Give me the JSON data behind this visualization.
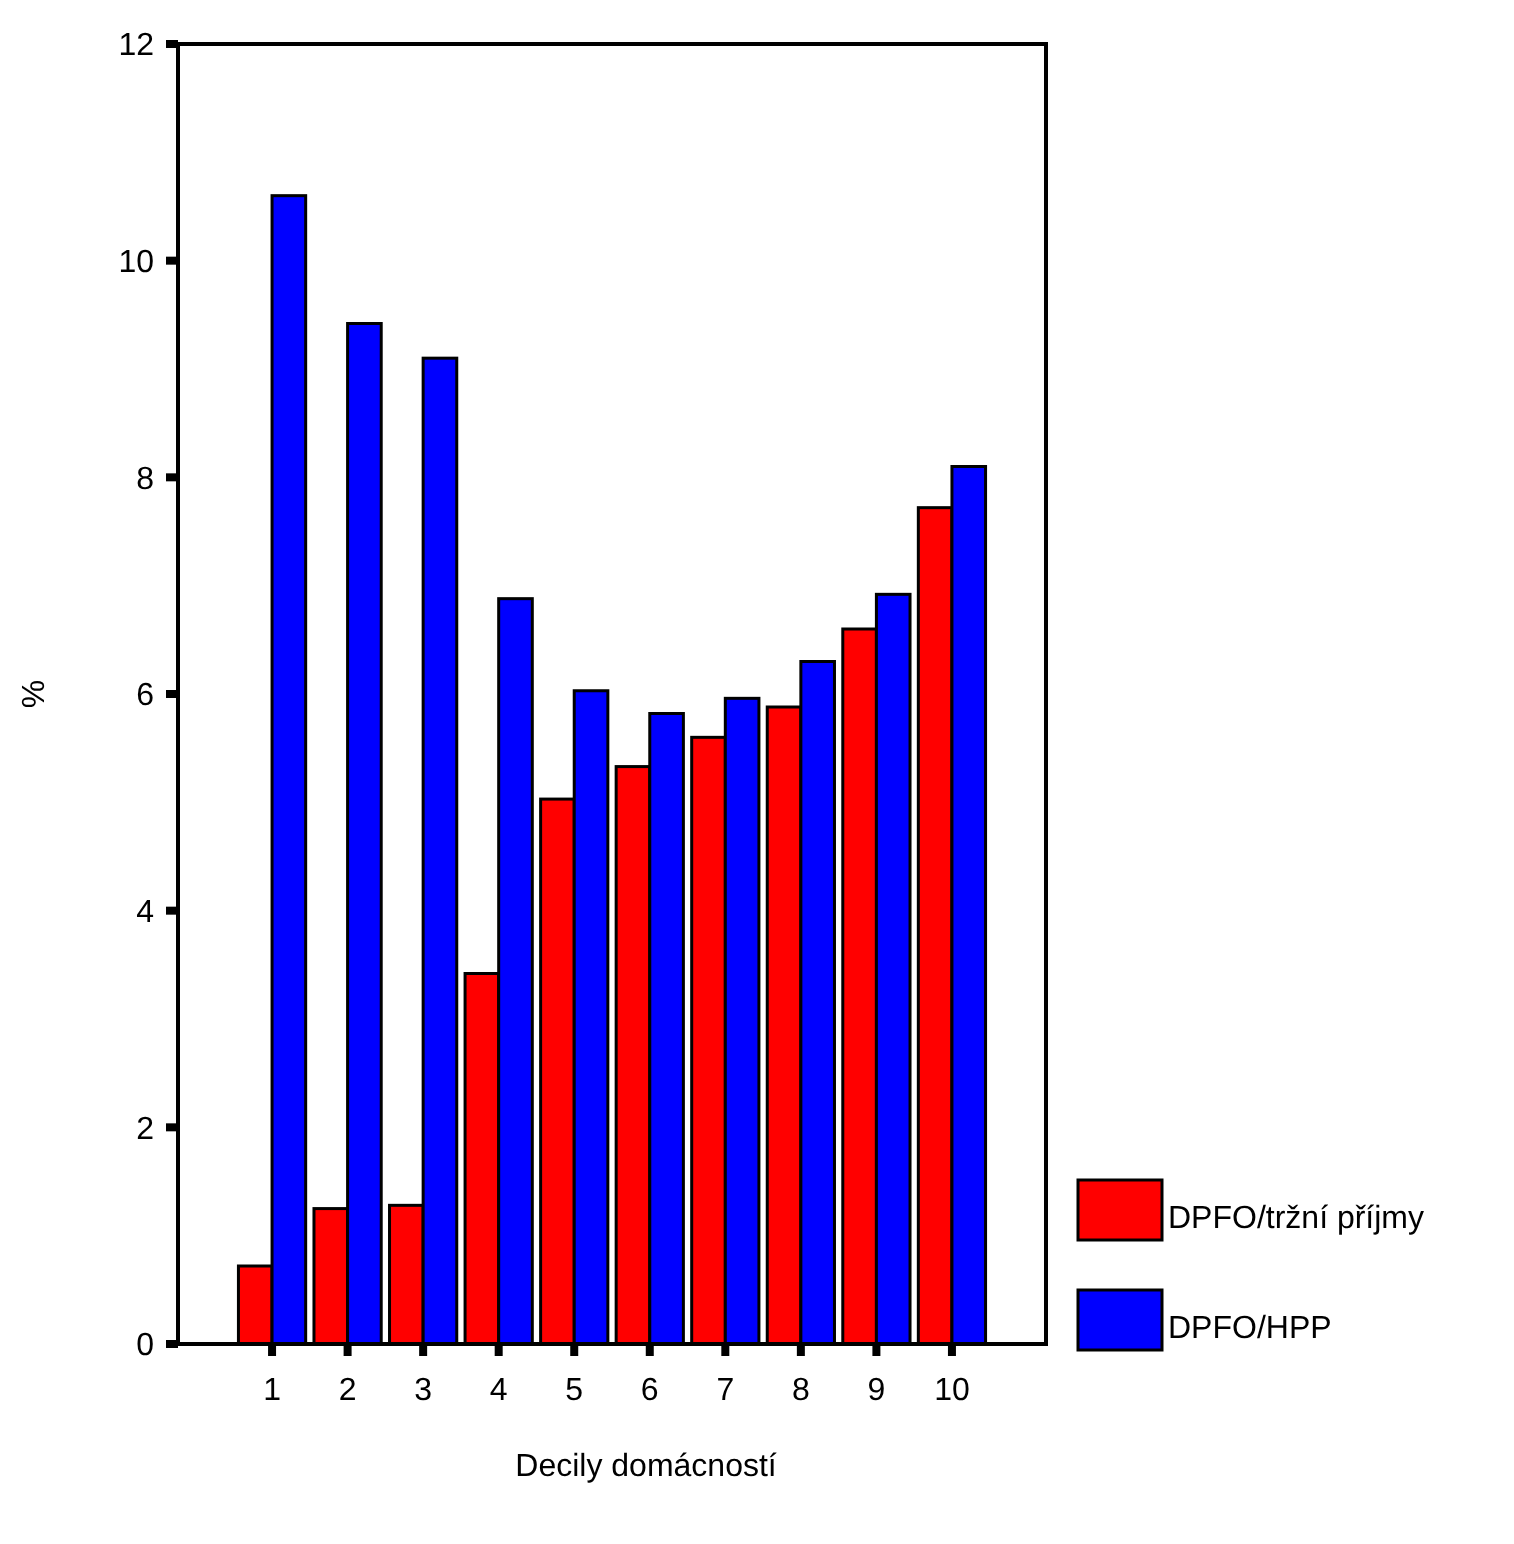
{
  "chart_data": {
    "type": "bar",
    "xlabel": "Decily domácností",
    "ylabel": "%",
    "categories": [
      "1",
      "2",
      "3",
      "4",
      "5",
      "6",
      "7",
      "8",
      "9",
      "10"
    ],
    "series": [
      {
        "name": "DPFO/tržní příjmy",
        "color": "#ff0000",
        "values": [
          0.72,
          1.25,
          1.28,
          3.42,
          5.03,
          5.33,
          5.6,
          5.88,
          6.6,
          7.72
        ]
      },
      {
        "name": "DPFO/HPP",
        "color": "#0000ff",
        "values": [
          10.6,
          9.42,
          9.1,
          6.88,
          6.03,
          5.82,
          5.96,
          6.3,
          6.92,
          8.1
        ]
      }
    ],
    "ylim": [
      0,
      12
    ],
    "yticks": [
      0,
      2,
      4,
      6,
      8,
      10,
      12
    ],
    "grid": false,
    "legend": "bottom right"
  }
}
